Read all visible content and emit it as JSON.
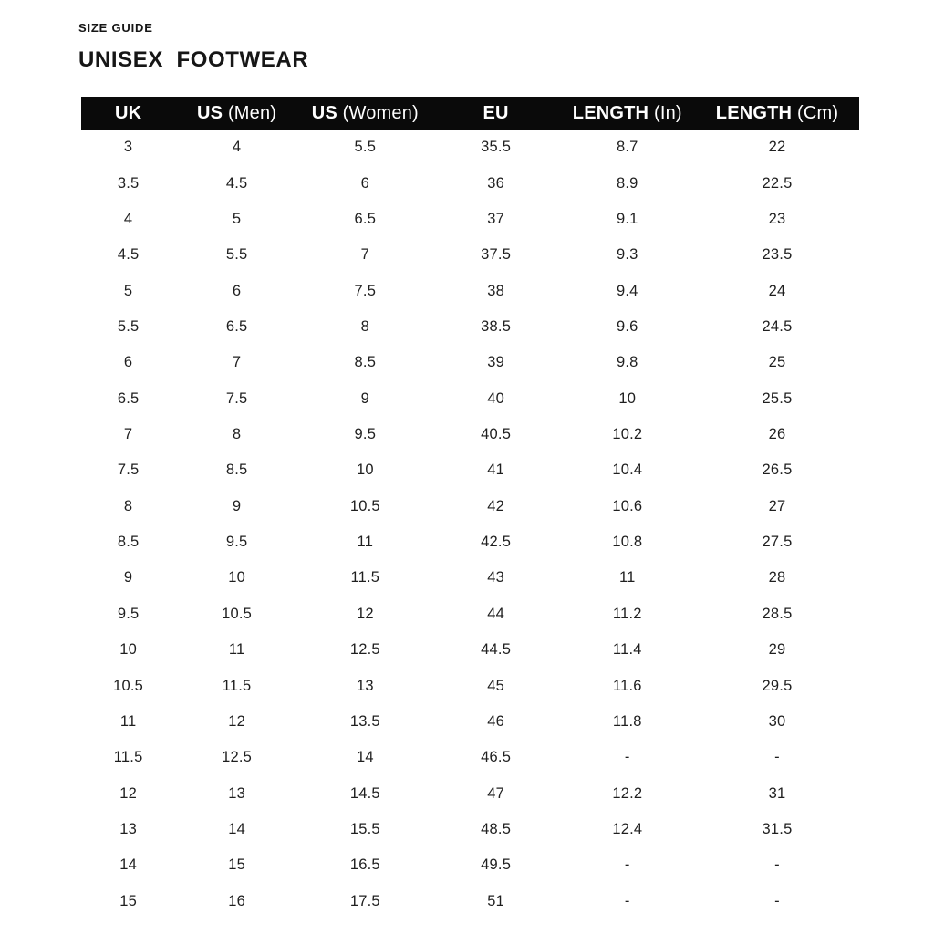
{
  "page": {
    "eyebrow": "SIZE GUIDE",
    "title": "UNISEX  FOOTWEAR"
  },
  "colors": {
    "header_bg": "#0a0a0a",
    "header_text": "#ffffff",
    "body_text": "#1f1f1f",
    "background": "#ffffff"
  },
  "table": {
    "columns": [
      {
        "bold": "UK",
        "light": ""
      },
      {
        "bold": "US",
        "light": "(Men)"
      },
      {
        "bold": "US",
        "light": "(Women)"
      },
      {
        "bold": "EU",
        "light": ""
      },
      {
        "bold": "LENGTH",
        "light": "(In)"
      },
      {
        "bold": "LENGTH",
        "light": "(Cm)"
      }
    ],
    "rows": [
      [
        "3",
        "4",
        "5.5",
        "35.5",
        "8.7",
        "22"
      ],
      [
        "3.5",
        "4.5",
        "6",
        "36",
        "8.9",
        "22.5"
      ],
      [
        "4",
        "5",
        "6.5",
        "37",
        "9.1",
        "23"
      ],
      [
        "4.5",
        "5.5",
        "7",
        "37.5",
        "9.3",
        "23.5"
      ],
      [
        "5",
        "6",
        "7.5",
        "38",
        "9.4",
        "24"
      ],
      [
        "5.5",
        "6.5",
        "8",
        "38.5",
        "9.6",
        "24.5"
      ],
      [
        "6",
        "7",
        "8.5",
        "39",
        "9.8",
        "25"
      ],
      [
        "6.5",
        "7.5",
        "9",
        "40",
        "10",
        "25.5"
      ],
      [
        "7",
        "8",
        "9.5",
        "40.5",
        "10.2",
        "26"
      ],
      [
        "7.5",
        "8.5",
        "10",
        "41",
        "10.4",
        "26.5"
      ],
      [
        "8",
        "9",
        "10.5",
        "42",
        "10.6",
        "27"
      ],
      [
        "8.5",
        "9.5",
        "11",
        "42.5",
        "10.8",
        "27.5"
      ],
      [
        "9",
        "10",
        "11.5",
        "43",
        "11",
        "28"
      ],
      [
        "9.5",
        "10.5",
        "12",
        "44",
        "11.2",
        "28.5"
      ],
      [
        "10",
        "11",
        "12.5",
        "44.5",
        "11.4",
        "29"
      ],
      [
        "10.5",
        "11.5",
        "13",
        "45",
        "11.6",
        "29.5"
      ],
      [
        "11",
        "12",
        "13.5",
        "46",
        "11.8",
        "30"
      ],
      [
        "11.5",
        "12.5",
        "14",
        "46.5",
        "-",
        "-"
      ],
      [
        "12",
        "13",
        "14.5",
        "47",
        "12.2",
        "31"
      ],
      [
        "13",
        "14",
        "15.5",
        "48.5",
        "12.4",
        "31.5"
      ],
      [
        "14",
        "15",
        "16.5",
        "49.5",
        "-",
        "-"
      ],
      [
        "15",
        "16",
        "17.5",
        "51",
        "-",
        "-"
      ]
    ]
  }
}
